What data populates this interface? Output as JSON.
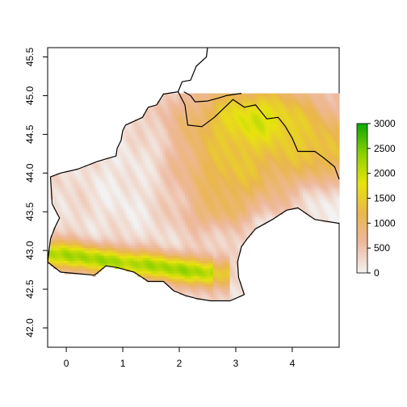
{
  "map": {
    "x_axis": {
      "range": [
        -0.33,
        4.83
      ],
      "ticks": [
        0,
        1,
        2,
        3,
        4
      ],
      "tick_labels": [
        "0",
        "1",
        "2",
        "3",
        "4"
      ]
    },
    "y_axis": {
      "range": [
        41.75,
        45.62
      ],
      "ticks": [
        42.0,
        42.5,
        43.0,
        43.5,
        44.0,
        44.5,
        45.0,
        45.5
      ],
      "tick_labels": [
        "42.0",
        "42.5",
        "43.0",
        "43.5",
        "44.0",
        "44.5",
        "45.0",
        "45.5"
      ]
    },
    "raster_extent": {
      "x": [
        -0.33,
        4.83
      ],
      "y": [
        42.3,
        45.03
      ]
    },
    "legend": {
      "placement": "right",
      "min": 0,
      "max": 3000,
      "ticks": [
        0,
        500,
        1000,
        1500,
        2000,
        2500,
        3000
      ],
      "tick_labels": [
        "0",
        "500",
        "1000",
        "1500",
        "2000",
        "2500",
        "3000"
      ],
      "colors": [
        "#f2f2f2",
        "#eeb99f",
        "#eab64e",
        "#e7e30e",
        "#8bd000",
        "#0ba800"
      ]
    },
    "boundary_color": "#000000",
    "outline": [
      [
        2.5,
        45.62
      ],
      [
        2.48,
        45.5
      ],
      [
        2.3,
        45.38
      ],
      [
        2.2,
        45.2
      ],
      [
        2.05,
        45.18
      ],
      [
        1.98,
        45.05
      ],
      [
        1.72,
        45.02
      ],
      [
        1.6,
        44.88
      ],
      [
        1.45,
        44.85
      ],
      [
        1.35,
        44.72
      ],
      [
        1.05,
        44.62
      ],
      [
        1.0,
        44.55
      ],
      [
        0.97,
        44.42
      ],
      [
        0.9,
        44.32
      ],
      [
        0.88,
        44.22
      ],
      [
        0.55,
        44.15
      ],
      [
        0.2,
        44.05
      ],
      [
        -0.1,
        44.0
      ],
      [
        -0.28,
        43.95
      ],
      [
        -0.25,
        43.6
      ],
      [
        -0.12,
        43.42
      ],
      [
        -0.2,
        43.3
      ],
      [
        -0.28,
        43.15
      ],
      [
        -0.33,
        42.85
      ],
      [
        -0.1,
        42.72
      ],
      [
        0.2,
        42.7
      ],
      [
        0.5,
        42.68
      ],
      [
        0.7,
        42.8
      ],
      [
        0.9,
        42.78
      ],
      [
        1.2,
        42.72
      ],
      [
        1.45,
        42.6
      ],
      [
        1.72,
        42.6
      ],
      [
        1.9,
        42.48
      ],
      [
        2.1,
        42.42
      ],
      [
        2.3,
        42.38
      ],
      [
        2.55,
        42.35
      ],
      [
        2.9,
        42.35
      ],
      [
        3.15,
        42.43
      ],
      [
        3.05,
        42.65
      ],
      [
        3.03,
        42.85
      ],
      [
        3.1,
        43.05
      ],
      [
        3.2,
        43.15
      ],
      [
        3.35,
        43.28
      ],
      [
        3.65,
        43.4
      ],
      [
        3.9,
        43.52
      ],
      [
        4.1,
        43.55
      ],
      [
        4.4,
        43.4
      ],
      [
        4.83,
        43.35
      ]
    ],
    "inner_boundary": [
      [
        1.98,
        45.05
      ],
      [
        2.1,
        44.88
      ],
      [
        2.15,
        44.62
      ],
      [
        2.4,
        44.6
      ],
      [
        2.62,
        44.72
      ],
      [
        2.95,
        44.95
      ],
      [
        3.15,
        44.85
      ],
      [
        3.35,
        44.88
      ],
      [
        3.55,
        44.7
      ],
      [
        3.75,
        44.72
      ],
      [
        3.88,
        44.6
      ],
      [
        4.0,
        44.45
      ],
      [
        4.1,
        44.28
      ],
      [
        4.4,
        44.28
      ],
      [
        4.55,
        44.2
      ],
      [
        4.75,
        44.08
      ],
      [
        4.83,
        43.92
      ]
    ],
    "upper_boundary": [
      [
        2.08,
        45.05
      ],
      [
        2.2,
        45.0
      ],
      [
        2.28,
        44.92
      ],
      [
        2.5,
        44.93
      ],
      [
        2.7,
        44.97
      ],
      [
        2.83,
        45.0
      ],
      [
        3.1,
        45.03
      ]
    ]
  }
}
